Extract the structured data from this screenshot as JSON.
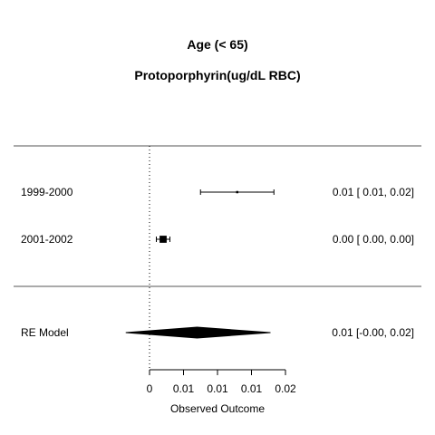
{
  "chart_data": {
    "type": "forest",
    "title": "Age (< 65)",
    "subtitle": "Protoporphyrin(ug/dL RBC)",
    "xlabel": "Observed Outcome",
    "xlim": [
      0,
      0.02
    ],
    "x_ticks": [
      0,
      0.005,
      0.01,
      0.015,
      0.02
    ],
    "x_tick_labels": [
      "0",
      "0.01",
      "0.01",
      "0.01",
      "0.02"
    ],
    "reference_line": 0,
    "studies": [
      {
        "label": "1999-2000",
        "estimate": 0.0129,
        "ci_lower": 0.0075,
        "ci_upper": 0.0183,
        "ci_text": "0.01 [ 0.01, 0.02]",
        "weight": 0.05
      },
      {
        "label": "2001-2002",
        "estimate": 0.002,
        "ci_lower": 0.001,
        "ci_upper": 0.003,
        "ci_text": "0.00 [ 0.00, 0.00]",
        "weight": 0.95
      }
    ],
    "summary": {
      "label": "RE Model",
      "estimate": 0.007,
      "ci_lower": -0.0035,
      "ci_upper": 0.0178,
      "ci_text": "0.01 [-0.00, 0.02]"
    }
  }
}
